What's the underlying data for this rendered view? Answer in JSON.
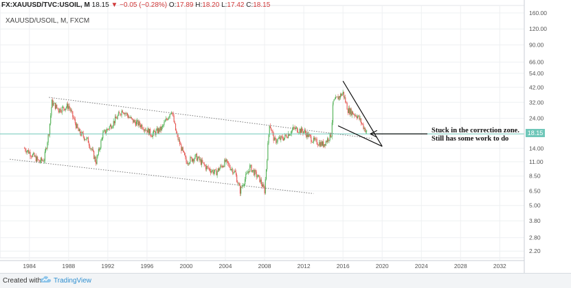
{
  "header": {
    "symbol": "FX:XAUUSD/TVC:USOIL, M",
    "last": "18.15",
    "change": "−0.05 (−0.28%)",
    "o_label": "O:",
    "o_value": "17.89",
    "h_label": "H:",
    "h_value": "18.20",
    "l_label": "L:",
    "l_value": "17.42",
    "c_label": "C:",
    "c_value": "18.15"
  },
  "chart_subtitle": "XAUUSD/USOIL, M, FXCM",
  "annotation_lines": [
    "Stuck in the correction zone.",
    "Still has some work to do"
  ],
  "footer": {
    "created_with": "Created with",
    "brand": "TradingView"
  },
  "colors": {
    "up": "#4caf50",
    "down": "#e5544f",
    "price_line": "#6fc7b9",
    "grid": "#eef0f2"
  },
  "chart_data": {
    "type": "candlestick",
    "y_scale": "log",
    "ylim": [
      1.95,
      170
    ],
    "xlim": [
      1981.0,
      2034.5
    ],
    "y_ticks": [
      "160.00",
      "120.00",
      "90.00",
      "66.00",
      "54.00",
      "42.00",
      "32.00",
      "24.00",
      "18.15",
      "14.00",
      "11.00",
      "8.50",
      "6.50",
      "5.00",
      "3.80",
      "2.80",
      "2.20"
    ],
    "y_tick_values": [
      160,
      120,
      90,
      66,
      54,
      42,
      32,
      24,
      18.15,
      14,
      11,
      8.5,
      6.5,
      5,
      3.8,
      2.8,
      2.2
    ],
    "x_ticks": [
      "1984",
      "1988",
      "1992",
      "1996",
      "2000",
      "2004",
      "2008",
      "2012",
      "2016",
      "2020",
      "2024",
      "2028",
      "2032"
    ],
    "x_tick_values": [
      1984,
      1988,
      1992,
      1996,
      2000,
      2004,
      2008,
      2012,
      2016,
      2020,
      2024,
      2028,
      2032
    ],
    "last_price": 18.15,
    "series": [
      {
        "x": [
          1983.5,
          1984.0,
          1984.5,
          1985.0,
          1985.5,
          1986.0,
          1986.3,
          1987.0,
          1988.0,
          1989.0,
          1990.0,
          1990.8,
          1991.5,
          1992.5,
          1993.5,
          1994.5,
          1995.5,
          1996.5,
          1997.5,
          1998.5,
          1999.0,
          2000.0,
          2001.0,
          2002.0,
          2003.0,
          2004.0,
          2005.0,
          2005.5,
          2006.5,
          2007.5,
          2008.0,
          2008.5,
          2009.0,
          2010.0,
          2011.0,
          2012.0,
          2013.0,
          2014.0,
          2014.8,
          2015.0,
          2016.0,
          2016.5,
          2017.5,
          2018.5
        ],
        "y": [
          14,
          13,
          12,
          11,
          11.5,
          19,
          32,
          28,
          30,
          19,
          16,
          11,
          18,
          22,
          28,
          23,
          21,
          18,
          20,
          28,
          18,
          11,
          12,
          10,
          9,
          11,
          9,
          6.5,
          10,
          8,
          6.5,
          22,
          16,
          17,
          20,
          19,
          16,
          15,
          18,
          32,
          38,
          28,
          25,
          18.15
        ]
      }
    ],
    "channel_upper": [
      [
        1986.0,
        35
      ],
      [
        2019.0,
        16.7
      ]
    ],
    "channel_lower": [
      [
        1982.0,
        11.5
      ],
      [
        2013.0,
        6.2
      ]
    ],
    "wedge_upper": [
      [
        2016.0,
        47
      ],
      [
        2020.0,
        14.5
      ]
    ],
    "wedge_lower": [
      [
        2015.5,
        21
      ],
      [
        2020.0,
        14.5
      ]
    ],
    "annotation_arrow_target": [
      2018.5,
      18.15
    ]
  }
}
